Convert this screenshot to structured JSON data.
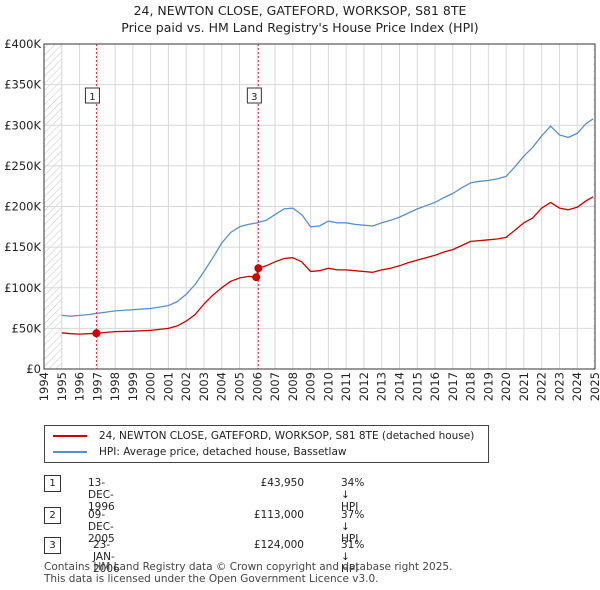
{
  "header": {
    "title": "24, NEWTON CLOSE, GATEFORD, WORKSOP, S81 8TE",
    "subtitle": "Price paid vs. HM Land Registry's House Price Index (HPI)"
  },
  "colors": {
    "red": "#cc0000",
    "blue": "#5b8fcc",
    "grid": "#d8d8d8",
    "hatch": "#cccccc",
    "marker_line": "#cc3333"
  },
  "chart_data": {
    "type": "line",
    "title": "24, NEWTON CLOSE, GATEFORD, WORKSOP, S81 8TE",
    "subtitle": "Price paid vs. HM Land Registry's House Price Index (HPI)",
    "xlim": [
      1994,
      2025
    ],
    "ylim": [
      0,
      400000
    ],
    "x_ticks": [
      1994,
      1995,
      1996,
      1997,
      1998,
      1999,
      2000,
      2001,
      2002,
      2003,
      2004,
      2005,
      2006,
      2007,
      2008,
      2009,
      2010,
      2011,
      2012,
      2013,
      2014,
      2015,
      2016,
      2017,
      2018,
      2019,
      2020,
      2021,
      2022,
      2023,
      2024,
      2025
    ],
    "y_ticks": [
      {
        "v": 0,
        "label": "£0"
      },
      {
        "v": 50000,
        "label": "£50K"
      },
      {
        "v": 100000,
        "label": "£100K"
      },
      {
        "v": 150000,
        "label": "£150K"
      },
      {
        "v": 200000,
        "label": "£200K"
      },
      {
        "v": 250000,
        "label": "£250K"
      },
      {
        "v": 300000,
        "label": "£300K"
      },
      {
        "v": 350000,
        "label": "£350K"
      },
      {
        "v": 400000,
        "label": "£400K"
      }
    ],
    "hatched_before": 1995,
    "hatched_after": 2024.9,
    "series": [
      {
        "name": "24, NEWTON CLOSE, GATEFORD, WORKSOP, S81 8TE (detached house)",
        "color": "#cc0000",
        "points": [
          [
            1995,
            44500
          ],
          [
            1995.5,
            43500
          ],
          [
            1996,
            43000
          ],
          [
            1996.5,
            43500
          ],
          [
            1996.95,
            43950
          ],
          [
            1997.5,
            45000
          ],
          [
            1998,
            46000
          ],
          [
            1999,
            46500
          ],
          [
            2000,
            47500
          ],
          [
            2001,
            50000
          ],
          [
            2001.5,
            53000
          ],
          [
            2002,
            59000
          ],
          [
            2002.5,
            67000
          ],
          [
            2003,
            80000
          ],
          [
            2003.5,
            91000
          ],
          [
            2004,
            100000
          ],
          [
            2004.5,
            108000
          ],
          [
            2005,
            112000
          ],
          [
            2005.5,
            114000
          ],
          [
            2005.94,
            113000
          ],
          [
            2006.06,
            124000
          ],
          [
            2006.5,
            127000
          ],
          [
            2007,
            132000
          ],
          [
            2007.5,
            136000
          ],
          [
            2008,
            137000
          ],
          [
            2008.5,
            132000
          ],
          [
            2009,
            120000
          ],
          [
            2009.5,
            121000
          ],
          [
            2010,
            124000
          ],
          [
            2010.5,
            122000
          ],
          [
            2011,
            122000
          ],
          [
            2011.5,
            121000
          ],
          [
            2012,
            120000
          ],
          [
            2012.5,
            119000
          ],
          [
            2013,
            122000
          ],
          [
            2013.5,
            124000
          ],
          [
            2014,
            127000
          ],
          [
            2014.5,
            131000
          ],
          [
            2015,
            134000
          ],
          [
            2015.5,
            137000
          ],
          [
            2016,
            140000
          ],
          [
            2016.5,
            144000
          ],
          [
            2017,
            147000
          ],
          [
            2017.5,
            152000
          ],
          [
            2018,
            157000
          ],
          [
            2018.5,
            158000
          ],
          [
            2019,
            159000
          ],
          [
            2019.5,
            160000
          ],
          [
            2020,
            162000
          ],
          [
            2020.5,
            171000
          ],
          [
            2021,
            180000
          ],
          [
            2021.5,
            186000
          ],
          [
            2022,
            198000
          ],
          [
            2022.5,
            205000
          ],
          [
            2023,
            198000
          ],
          [
            2023.5,
            196000
          ],
          [
            2024,
            199000
          ],
          [
            2024.5,
            207000
          ],
          [
            2024.9,
            212000
          ]
        ]
      },
      {
        "name": "HPI: Average price, detached house, Bassetlaw",
        "color": "#5b8fcc",
        "points": [
          [
            1995,
            66000
          ],
          [
            1995.5,
            65000
          ],
          [
            1996,
            66000
          ],
          [
            1996.5,
            67000
          ],
          [
            1997,
            68500
          ],
          [
            1997.5,
            70000
          ],
          [
            1998,
            71500
          ],
          [
            1999,
            73000
          ],
          [
            2000,
            74500
          ],
          [
            2001,
            78000
          ],
          [
            2001.5,
            83000
          ],
          [
            2002,
            92000
          ],
          [
            2002.5,
            104000
          ],
          [
            2003,
            120000
          ],
          [
            2003.5,
            137000
          ],
          [
            2004,
            155000
          ],
          [
            2004.5,
            168000
          ],
          [
            2005,
            175000
          ],
          [
            2005.5,
            178000
          ],
          [
            2006,
            180000
          ],
          [
            2006.5,
            183000
          ],
          [
            2007,
            190000
          ],
          [
            2007.5,
            197000
          ],
          [
            2008,
            198000
          ],
          [
            2008.5,
            190000
          ],
          [
            2009,
            175000
          ],
          [
            2009.5,
            176000
          ],
          [
            2010,
            182000
          ],
          [
            2010.5,
            180000
          ],
          [
            2011,
            180000
          ],
          [
            2011.5,
            178000
          ],
          [
            2012,
            177000
          ],
          [
            2012.5,
            176000
          ],
          [
            2013,
            180000
          ],
          [
            2013.5,
            183000
          ],
          [
            2014,
            187000
          ],
          [
            2014.5,
            192000
          ],
          [
            2015,
            197000
          ],
          [
            2015.5,
            201000
          ],
          [
            2016,
            205000
          ],
          [
            2016.5,
            211000
          ],
          [
            2017,
            216000
          ],
          [
            2017.5,
            223000
          ],
          [
            2018,
            229000
          ],
          [
            2018.5,
            231000
          ],
          [
            2019,
            232000
          ],
          [
            2019.5,
            234000
          ],
          [
            2020,
            237000
          ],
          [
            2020.5,
            249000
          ],
          [
            2021,
            262000
          ],
          [
            2021.5,
            273000
          ],
          [
            2022,
            287000
          ],
          [
            2022.5,
            299000
          ],
          [
            2023,
            288000
          ],
          [
            2023.5,
            285000
          ],
          [
            2024,
            290000
          ],
          [
            2024.5,
            302000
          ],
          [
            2024.9,
            308000
          ]
        ]
      }
    ],
    "sale_markers": [
      {
        "label": "1",
        "x": 1996.95,
        "y": 43950,
        "line": true
      },
      {
        "label": "2",
        "x": 2005.94,
        "y": 113000,
        "line": false
      },
      {
        "label": "3",
        "x": 2006.06,
        "y": 124000,
        "line": true
      }
    ],
    "box_labels": [
      {
        "label": "1",
        "x": 1996.95,
        "y": 336000
      },
      {
        "label": "3",
        "x": 2006.06,
        "y": 336000
      }
    ]
  },
  "legend": {
    "items": [
      {
        "label": "24, NEWTON CLOSE, GATEFORD, WORKSOP, S81 8TE (detached house)",
        "color": "#cc0000"
      },
      {
        "label": "HPI: Average price, detached house, Bassetlaw",
        "color": "#5b8fcc"
      }
    ]
  },
  "transactions": [
    {
      "num": "1",
      "date": "13-DEC-1996",
      "price": "£43,950",
      "pct": "34% ↓ HPI"
    },
    {
      "num": "2",
      "date": "09-DEC-2005",
      "price": "£113,000",
      "pct": "37% ↓ HPI"
    },
    {
      "num": "3",
      "date": "23-JAN-2006",
      "price": "£124,000",
      "pct": "31% ↓ HPI"
    }
  ],
  "footer": {
    "line1": "Contains HM Land Registry data © Crown copyright and database right 2025.",
    "line2": "This data is licensed under the Open Government Licence v3.0."
  }
}
